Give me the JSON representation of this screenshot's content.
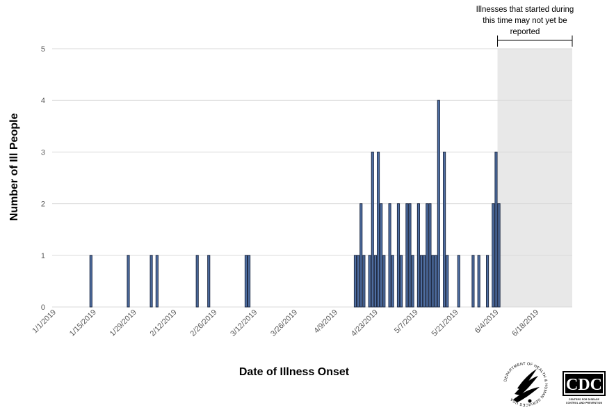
{
  "chart_data": {
    "type": "bar",
    "xlabel": "Date of Illness Onset",
    "ylabel": "Number of Ill People",
    "ylim": [
      0,
      5
    ],
    "yticks": [
      0,
      1,
      2,
      3,
      4,
      5
    ],
    "x_start": "2019-01-01",
    "x_end": "2019-06-30",
    "xtick_labels": [
      "1/1/2019",
      "1/15/2019",
      "1/29/2019",
      "2/12/2019",
      "2/26/2019",
      "3/12/2019",
      "3/26/2019",
      "4/9/2019",
      "4/23/2019",
      "5/7/2019",
      "5/21/2019",
      "6/4/2019",
      "6/18/2019"
    ],
    "grid": true,
    "bar_color": "#4f6fa3",
    "bar_edge_color": "#1f2b45",
    "series": [
      {
        "dates": [
          "2019-01-14",
          "2019-01-27",
          "2019-02-04",
          "2019-02-06",
          "2019-02-20",
          "2019-02-24",
          "2019-03-09",
          "2019-03-10",
          "2019-04-16",
          "2019-04-17",
          "2019-04-18",
          "2019-04-19",
          "2019-04-21",
          "2019-04-22",
          "2019-04-23",
          "2019-04-24",
          "2019-04-25",
          "2019-04-26",
          "2019-04-28",
          "2019-04-29",
          "2019-05-01",
          "2019-05-02",
          "2019-05-04",
          "2019-05-05",
          "2019-05-06",
          "2019-05-08",
          "2019-05-09",
          "2019-05-10",
          "2019-05-11",
          "2019-05-12",
          "2019-05-13",
          "2019-05-14",
          "2019-05-15",
          "2019-05-17",
          "2019-05-18",
          "2019-05-22",
          "2019-05-27",
          "2019-05-29",
          "2019-06-01",
          "2019-06-03",
          "2019-06-04",
          "2019-06-05"
        ],
        "values": [
          1,
          1,
          1,
          1,
          1,
          1,
          1,
          1,
          1,
          1,
          2,
          1,
          1,
          3,
          1,
          3,
          2,
          1,
          2,
          1,
          2,
          1,
          2,
          2,
          1,
          2,
          1,
          1,
          2,
          2,
          1,
          1,
          4,
          3,
          1,
          1,
          1,
          1,
          1,
          2,
          3,
          2
        ]
      }
    ],
    "shaded_region": {
      "start": "2019-06-05",
      "end": "2019-06-30",
      "color": "#e8e8e8",
      "annotation": "Illnesses that started during this time may not yet be reported",
      "annotation_lines": [
        "Illnesses that started during",
        "this time may not yet be",
        "reported"
      ]
    }
  },
  "logos": {
    "hhs_ring_text": "DEPARTMENT OF HEALTH & HUMAN SERVICES USA",
    "cdc_letters": "CDC",
    "cdc_tagline_1": "CENTERS FOR DISEASE",
    "cdc_tagline_2": "CONTROL AND PREVENTION"
  }
}
